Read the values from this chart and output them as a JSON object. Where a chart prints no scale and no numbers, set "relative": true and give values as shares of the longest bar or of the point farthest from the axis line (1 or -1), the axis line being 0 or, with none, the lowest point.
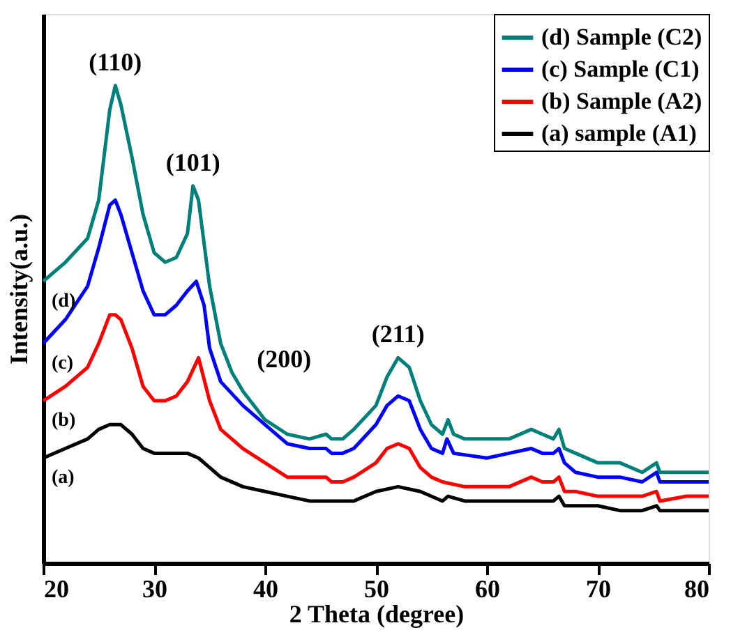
{
  "chart_data": {
    "type": "line",
    "relative": true,
    "xlabel": "2 Theta (degree)",
    "ylabel": "Intensity(a.u.)",
    "xlim": [
      20,
      80
    ],
    "xticks": [
      20,
      30,
      40,
      50,
      60,
      70,
      80
    ],
    "legend": "top right",
    "grid": false,
    "line_style": "solid",
    "marker": "none",
    "series": [
      {
        "name": "(d) Sample (C2)",
        "color": "#00807a",
        "x": [
          20,
          22,
          24,
          25,
          26,
          26.5,
          27,
          28,
          29,
          30,
          31,
          32,
          33,
          33.5,
          34,
          35,
          36,
          37,
          38,
          40,
          42,
          44,
          45.5,
          46,
          47,
          48,
          50,
          51,
          52,
          53,
          54,
          55,
          56,
          56.5,
          57,
          58,
          60,
          62,
          64,
          65,
          66,
          66.5,
          67,
          68,
          70,
          72,
          74,
          75.3,
          75.6,
          78,
          80
        ],
        "values": [
          0.59,
          0.63,
          0.68,
          0.76,
          0.95,
          1,
          0.96,
          0.85,
          0.73,
          0.65,
          0.63,
          0.64,
          0.69,
          0.79,
          0.76,
          0.58,
          0.46,
          0.4,
          0.36,
          0.3,
          0.27,
          0.26,
          0.27,
          0.26,
          0.26,
          0.28,
          0.33,
          0.39,
          0.43,
          0.41,
          0.34,
          0.29,
          0.27,
          0.3,
          0.27,
          0.26,
          0.26,
          0.26,
          0.28,
          0.27,
          0.26,
          0.28,
          0.24,
          0.23,
          0.21,
          0.21,
          0.19,
          0.21,
          0.19,
          0.19,
          0.19
        ]
      },
      {
        "name": "(c) Sample (C1)",
        "color": "#0000ff",
        "x": [
          20,
          22,
          24,
          25,
          26,
          26.5,
          27,
          28,
          29,
          30,
          31,
          32,
          33,
          33.8,
          34.5,
          35,
          36,
          38,
          40,
          42,
          44,
          45.5,
          46,
          47,
          48,
          50,
          51,
          52,
          53,
          54,
          55,
          56,
          56.4,
          57,
          60,
          62,
          64,
          65,
          66,
          66.5,
          67,
          68,
          70,
          72,
          74,
          75.3,
          75.6,
          78,
          80
        ],
        "values": [
          0.46,
          0.51,
          0.58,
          0.66,
          0.75,
          0.76,
          0.73,
          0.65,
          0.57,
          0.52,
          0.52,
          0.54,
          0.57,
          0.59,
          0.54,
          0.45,
          0.38,
          0.33,
          0.29,
          0.25,
          0.24,
          0.24,
          0.23,
          0.23,
          0.24,
          0.29,
          0.33,
          0.35,
          0.34,
          0.28,
          0.24,
          0.23,
          0.26,
          0.23,
          0.22,
          0.23,
          0.24,
          0.23,
          0.23,
          0.24,
          0.21,
          0.19,
          0.18,
          0.18,
          0.17,
          0.19,
          0.17,
          0.17,
          0.17
        ]
      },
      {
        "name": "(b) Sample (A2)",
        "color": "#ff0000",
        "x": [
          20,
          22,
          24,
          25,
          26,
          26.5,
          27,
          28,
          29,
          30,
          31,
          32,
          33,
          34,
          35,
          36,
          38,
          40,
          42,
          44,
          45.5,
          46,
          47,
          48,
          50,
          51,
          52,
          53,
          54,
          55,
          56,
          58,
          60,
          62,
          64,
          65,
          66,
          66.5,
          67,
          68,
          70,
          72,
          74,
          75.3,
          75.6,
          78,
          80
        ],
        "values": [
          0.34,
          0.37,
          0.41,
          0.46,
          0.52,
          0.52,
          0.51,
          0.45,
          0.37,
          0.34,
          0.34,
          0.35,
          0.38,
          0.43,
          0.34,
          0.28,
          0.24,
          0.21,
          0.18,
          0.18,
          0.18,
          0.17,
          0.17,
          0.18,
          0.21,
          0.24,
          0.25,
          0.24,
          0.2,
          0.18,
          0.17,
          0.16,
          0.16,
          0.16,
          0.18,
          0.17,
          0.17,
          0.18,
          0.15,
          0.15,
          0.14,
          0.14,
          0.14,
          0.15,
          0.13,
          0.14,
          0.14
        ]
      },
      {
        "name": "(a) sample (A1)",
        "color": "#000000",
        "x": [
          20,
          22,
          24,
          25,
          26,
          27,
          28,
          29,
          30,
          32,
          33,
          34,
          35,
          36,
          38,
          40,
          42,
          44,
          45.5,
          46,
          47,
          48,
          50,
          52,
          54,
          56,
          56.5,
          58,
          60,
          62,
          64,
          66,
          66.5,
          67,
          70,
          72,
          74,
          75.3,
          75.6,
          78,
          80
        ],
        "values": [
          0.22,
          0.24,
          0.26,
          0.28,
          0.29,
          0.29,
          0.27,
          0.24,
          0.23,
          0.23,
          0.23,
          0.22,
          0.2,
          0.18,
          0.16,
          0.15,
          0.14,
          0.13,
          0.13,
          0.13,
          0.13,
          0.13,
          0.15,
          0.16,
          0.15,
          0.13,
          0.14,
          0.13,
          0.13,
          0.13,
          0.13,
          0.13,
          0.14,
          0.12,
          0.12,
          0.11,
          0.11,
          0.12,
          0.11,
          0.11,
          0.11
        ]
      }
    ],
    "annotations": [
      {
        "text": "(110)",
        "x": 26.5,
        "y": 1
      },
      {
        "text": "(101)",
        "x": 33.5,
        "y": 0.79
      },
      {
        "text": "(200)",
        "x": 38,
        "y": 0.36
      },
      {
        "text": "(211)",
        "x": 52,
        "y": 0.43
      },
      {
        "text": "(d)",
        "x": 20,
        "y": 0.59
      },
      {
        "text": "(c)",
        "x": 20,
        "y": 0.46
      },
      {
        "text": "(b)",
        "x": 20,
        "y": 0.34
      },
      {
        "text": "(a)",
        "x": 20,
        "y": 0.22
      }
    ]
  }
}
